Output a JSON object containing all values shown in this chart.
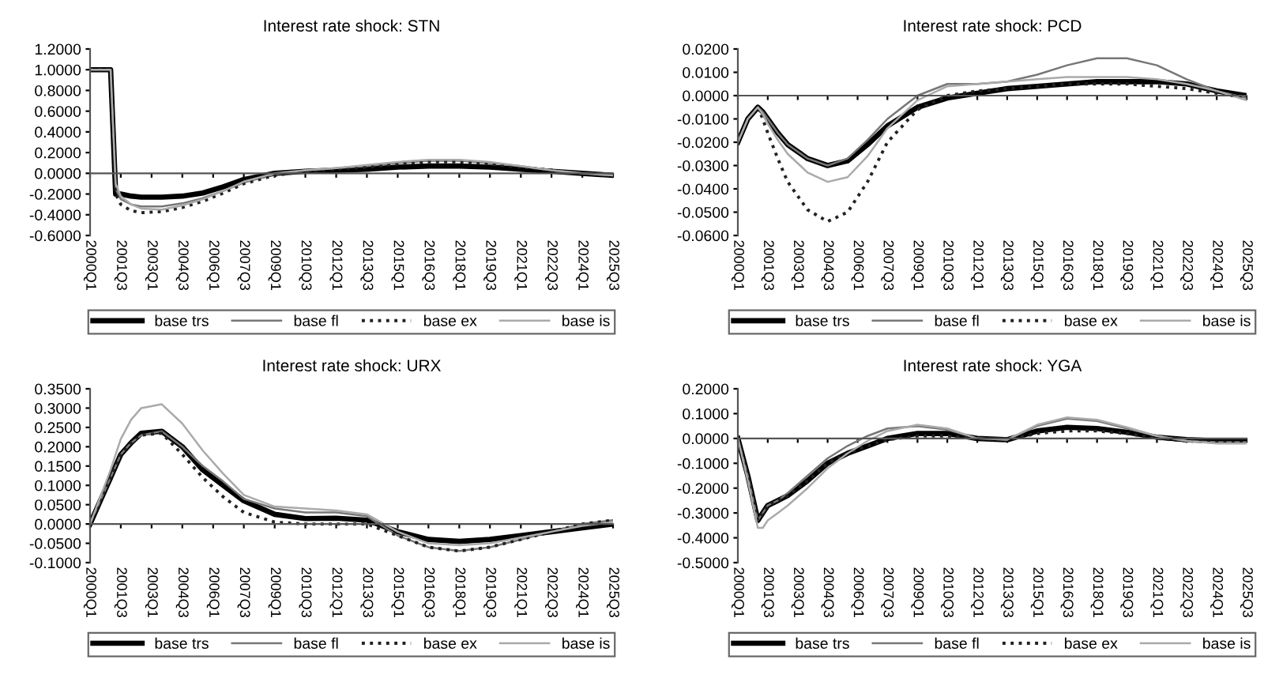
{
  "chart_data": [
    {
      "type": "line",
      "title": "Interest rate shock: STN",
      "x": [
        "2000-01",
        "2000-07",
        "2001-01",
        "2001-04",
        "2001-07",
        "2002-01",
        "2002-07",
        "2003-07",
        "2004-07",
        "2005-07",
        "2006-07",
        "2007-07",
        "2009-01",
        "2010-07",
        "2012-01",
        "2013-07",
        "2015-01",
        "2016-07",
        "2018-01",
        "2019-07",
        "2021-01",
        "2022-07",
        "2024-01",
        "2025-07"
      ],
      "series": [
        {
          "name": "base trs",
          "color": "#000000",
          "line_style": "solid",
          "values": [
            1.0,
            1.0,
            1.0,
            -0.2,
            -0.2,
            -0.22,
            -0.23,
            -0.23,
            -0.22,
            -0.19,
            -0.13,
            -0.06,
            0.0,
            0.02,
            0.03,
            0.04,
            0.06,
            0.07,
            0.07,
            0.06,
            0.04,
            0.02,
            0.0,
            -0.02
          ]
        },
        {
          "name": "base fl",
          "color": "#777777",
          "line_style": "solid",
          "values": [
            1.0,
            1.0,
            1.0,
            -0.15,
            -0.25,
            -0.3,
            -0.32,
            -0.32,
            -0.29,
            -0.24,
            -0.17,
            -0.09,
            -0.01,
            0.03,
            0.05,
            0.07,
            0.1,
            0.12,
            0.12,
            0.1,
            0.07,
            0.03,
            0.0,
            -0.02
          ]
        },
        {
          "name": "base ex",
          "color": "#222222",
          "line_style": "dotted",
          "values": [
            1.0,
            1.0,
            1.0,
            -0.2,
            -0.3,
            -0.36,
            -0.38,
            -0.37,
            -0.33,
            -0.27,
            -0.19,
            -0.1,
            -0.02,
            0.02,
            0.04,
            0.06,
            0.09,
            0.11,
            0.11,
            0.09,
            0.06,
            0.03,
            0.0,
            -0.02
          ]
        },
        {
          "name": "base is",
          "color": "#aaaaaa",
          "line_style": "solid",
          "values": [
            1.0,
            1.0,
            1.0,
            -0.1,
            -0.22,
            -0.3,
            -0.34,
            -0.35,
            -0.31,
            -0.25,
            -0.17,
            -0.08,
            0.0,
            0.03,
            0.05,
            0.08,
            0.11,
            0.13,
            0.13,
            0.11,
            0.07,
            0.03,
            0.0,
            -0.02
          ]
        }
      ],
      "xlim": [
        "2000-01",
        "2025-07"
      ],
      "xticks": [
        {
          "value": "2000-01",
          "label": "2000Q1"
        },
        {
          "value": "2001-07",
          "label": "2001Q3"
        },
        {
          "value": "2003-01",
          "label": "2003Q1"
        },
        {
          "value": "2004-07",
          "label": "2004Q3"
        },
        {
          "value": "2006-01",
          "label": "2006Q1"
        },
        {
          "value": "2007-07",
          "label": "2007Q3"
        },
        {
          "value": "2009-01",
          "label": "2009Q1"
        },
        {
          "value": "2010-07",
          "label": "2010Q3"
        },
        {
          "value": "2012-01",
          "label": "2012Q1"
        },
        {
          "value": "2013-07",
          "label": "2013Q3"
        },
        {
          "value": "2015-01",
          "label": "2015Q1"
        },
        {
          "value": "2016-07",
          "label": "2016Q3"
        },
        {
          "value": "2018-01",
          "label": "2018Q1"
        },
        {
          "value": "2019-07",
          "label": "2019Q3"
        },
        {
          "value": "2021-01",
          "label": "2021Q1"
        },
        {
          "value": "2022-07",
          "label": "2022Q3"
        },
        {
          "value": "2024-01",
          "label": "2024Q1"
        },
        {
          "value": "2025-07",
          "label": "2025Q3"
        }
      ],
      "ylim": [
        -0.6,
        1.2
      ],
      "yticks": [
        {
          "value": -0.6,
          "label": "-0.6000"
        },
        {
          "value": -0.4,
          "label": "-0.4000"
        },
        {
          "value": -0.2,
          "label": "-0.2000"
        },
        {
          "value": 0,
          "label": "0.0000"
        },
        {
          "value": 0.2,
          "label": "0.2000"
        },
        {
          "value": 0.4,
          "label": "0.4000"
        },
        {
          "value": 0.6,
          "label": "0.6000"
        },
        {
          "value": 0.8,
          "label": "0.8000"
        },
        {
          "value": 1.0,
          "label": "1.0000"
        },
        {
          "value": 1.2,
          "label": "1.2000"
        }
      ],
      "legend": "bottom"
    },
    {
      "type": "line",
      "title": "Interest rate shock: PCD",
      "x": [
        "2000-01",
        "2000-07",
        "2001-01",
        "2001-04",
        "2001-07",
        "2002-01",
        "2002-07",
        "2003-07",
        "2004-07",
        "2005-07",
        "2006-07",
        "2007-07",
        "2009-01",
        "2010-07",
        "2012-01",
        "2013-07",
        "2015-01",
        "2016-07",
        "2018-01",
        "2019-07",
        "2021-01",
        "2022-07",
        "2024-01",
        "2025-07"
      ],
      "series": [
        {
          "name": "base trs",
          "color": "#000000",
          "line_style": "solid",
          "values": [
            -0.02,
            -0.01,
            -0.005,
            -0.007,
            -0.01,
            -0.016,
            -0.021,
            -0.027,
            -0.03,
            -0.028,
            -0.021,
            -0.013,
            -0.005,
            -0.001,
            0.001,
            0.003,
            0.004,
            0.005,
            0.006,
            0.006,
            0.006,
            0.005,
            0.002,
            0.0
          ]
        },
        {
          "name": "base fl",
          "color": "#777777",
          "line_style": "solid",
          "values": [
            -0.02,
            -0.01,
            -0.005,
            -0.007,
            -0.01,
            -0.016,
            -0.021,
            -0.027,
            -0.03,
            -0.027,
            -0.019,
            -0.01,
            0.0,
            0.005,
            0.005,
            0.006,
            0.009,
            0.013,
            0.016,
            0.016,
            0.013,
            0.007,
            0.002,
            -0.001
          ]
        },
        {
          "name": "base ex",
          "color": "#222222",
          "line_style": "dotted",
          "values": [
            -0.02,
            -0.01,
            -0.005,
            -0.01,
            -0.016,
            -0.027,
            -0.037,
            -0.049,
            -0.054,
            -0.05,
            -0.037,
            -0.02,
            -0.006,
            0.0,
            0.002,
            0.003,
            0.004,
            0.005,
            0.005,
            0.005,
            0.004,
            0.003,
            0.001,
            -0.001
          ]
        },
        {
          "name": "base is",
          "color": "#aaaaaa",
          "line_style": "solid",
          "values": [
            -0.02,
            -0.01,
            -0.005,
            -0.008,
            -0.012,
            -0.019,
            -0.025,
            -0.033,
            -0.037,
            -0.035,
            -0.026,
            -0.014,
            -0.002,
            0.004,
            0.005,
            0.006,
            0.007,
            0.008,
            0.008,
            0.008,
            0.007,
            0.005,
            0.002,
            -0.002
          ]
        }
      ],
      "xlim": [
        "2000-01",
        "2025-07"
      ],
      "xticks": [
        {
          "value": "2000-01",
          "label": "2000Q1"
        },
        {
          "value": "2001-07",
          "label": "2001Q3"
        },
        {
          "value": "2003-01",
          "label": "2003Q1"
        },
        {
          "value": "2004-07",
          "label": "2004Q3"
        },
        {
          "value": "2006-01",
          "label": "2006Q1"
        },
        {
          "value": "2007-07",
          "label": "2007Q3"
        },
        {
          "value": "2009-01",
          "label": "2009Q1"
        },
        {
          "value": "2010-07",
          "label": "2010Q3"
        },
        {
          "value": "2012-01",
          "label": "2012Q1"
        },
        {
          "value": "2013-07",
          "label": "2013Q3"
        },
        {
          "value": "2015-01",
          "label": "2015Q1"
        },
        {
          "value": "2016-07",
          "label": "2016Q3"
        },
        {
          "value": "2018-01",
          "label": "2018Q1"
        },
        {
          "value": "2019-07",
          "label": "2019Q3"
        },
        {
          "value": "2021-01",
          "label": "2021Q1"
        },
        {
          "value": "2022-07",
          "label": "2022Q3"
        },
        {
          "value": "2024-01",
          "label": "2024Q1"
        },
        {
          "value": "2025-07",
          "label": "2025Q3"
        }
      ],
      "ylim": [
        -0.06,
        0.02
      ],
      "yticks": [
        {
          "value": -0.06,
          "label": "-0.0600"
        },
        {
          "value": -0.05,
          "label": "-0.0500"
        },
        {
          "value": -0.04,
          "label": "-0.0400"
        },
        {
          "value": -0.03,
          "label": "-0.0300"
        },
        {
          "value": -0.02,
          "label": "-0.0200"
        },
        {
          "value": -0.01,
          "label": "-0.0100"
        },
        {
          "value": 0,
          "label": "0.0000"
        },
        {
          "value": 0.01,
          "label": "0.0100"
        },
        {
          "value": 0.02,
          "label": "0.0200"
        }
      ],
      "legend": "bottom"
    },
    {
      "type": "line",
      "title": "Interest rate shock: URX",
      "x": [
        "2000-01",
        "2000-07",
        "2001-01",
        "2001-04",
        "2001-07",
        "2002-01",
        "2002-07",
        "2003-07",
        "2004-07",
        "2005-07",
        "2006-07",
        "2007-07",
        "2009-01",
        "2010-07",
        "2012-01",
        "2013-07",
        "2015-01",
        "2016-07",
        "2018-01",
        "2019-07",
        "2021-01",
        "2022-07",
        "2024-01",
        "2025-07"
      ],
      "series": [
        {
          "name": "base trs",
          "color": "#000000",
          "line_style": "solid",
          "values": [
            0.0,
            0.06,
            0.12,
            0.15,
            0.18,
            0.21,
            0.235,
            0.24,
            0.2,
            0.14,
            0.1,
            0.06,
            0.025,
            0.014,
            0.015,
            0.01,
            -0.02,
            -0.04,
            -0.045,
            -0.04,
            -0.03,
            -0.02,
            -0.01,
            0.0
          ]
        },
        {
          "name": "base fl",
          "color": "#777777",
          "line_style": "solid",
          "values": [
            0.0,
            0.06,
            0.12,
            0.15,
            0.18,
            0.21,
            0.23,
            0.24,
            0.2,
            0.15,
            0.11,
            0.065,
            0.04,
            0.03,
            0.03,
            0.02,
            -0.03,
            -0.06,
            -0.07,
            -0.06,
            -0.04,
            -0.02,
            0.0,
            0.01
          ]
        },
        {
          "name": "base ex",
          "color": "#222222",
          "line_style": "dotted",
          "values": [
            0.0,
            0.06,
            0.12,
            0.15,
            0.18,
            0.21,
            0.23,
            0.235,
            0.18,
            0.12,
            0.07,
            0.03,
            0.005,
            0.0,
            0.0,
            0.0,
            -0.03,
            -0.06,
            -0.07,
            -0.06,
            -0.04,
            -0.02,
            0.0,
            0.01
          ]
        },
        {
          "name": "base is",
          "color": "#aaaaaa",
          "line_style": "solid",
          "values": [
            0.0,
            0.07,
            0.14,
            0.18,
            0.22,
            0.27,
            0.3,
            0.31,
            0.26,
            0.19,
            0.13,
            0.075,
            0.045,
            0.04,
            0.035,
            0.025,
            -0.02,
            -0.05,
            -0.055,
            -0.05,
            -0.035,
            -0.02,
            -0.005,
            0.005
          ]
        }
      ],
      "xlim": [
        "2000-01",
        "2025-07"
      ],
      "xticks": [
        {
          "value": "2000-01",
          "label": "2000Q1"
        },
        {
          "value": "2001-07",
          "label": "2001Q3"
        },
        {
          "value": "2003-01",
          "label": "2003Q1"
        },
        {
          "value": "2004-07",
          "label": "2004Q3"
        },
        {
          "value": "2006-01",
          "label": "2006Q1"
        },
        {
          "value": "2007-07",
          "label": "2007Q3"
        },
        {
          "value": "2009-01",
          "label": "2009Q1"
        },
        {
          "value": "2010-07",
          "label": "2010Q3"
        },
        {
          "value": "2012-01",
          "label": "2012Q1"
        },
        {
          "value": "2013-07",
          "label": "2013Q3"
        },
        {
          "value": "2015-01",
          "label": "2015Q1"
        },
        {
          "value": "2016-07",
          "label": "2016Q3"
        },
        {
          "value": "2018-01",
          "label": "2018Q1"
        },
        {
          "value": "2019-07",
          "label": "2019Q3"
        },
        {
          "value": "2021-01",
          "label": "2021Q1"
        },
        {
          "value": "2022-07",
          "label": "2022Q3"
        },
        {
          "value": "2024-01",
          "label": "2024Q1"
        },
        {
          "value": "2025-07",
          "label": "2025Q3"
        }
      ],
      "ylim": [
        -0.1,
        0.35
      ],
      "yticks": [
        {
          "value": -0.1,
          "label": "-0.1000"
        },
        {
          "value": -0.05,
          "label": "-0.0500"
        },
        {
          "value": 0,
          "label": "0.0000"
        },
        {
          "value": 0.05,
          "label": "0.0500"
        },
        {
          "value": 0.1,
          "label": "0.1000"
        },
        {
          "value": 0.15,
          "label": "0.1500"
        },
        {
          "value": 0.2,
          "label": "0.2000"
        },
        {
          "value": 0.25,
          "label": "0.2500"
        },
        {
          "value": 0.3,
          "label": "0.3000"
        },
        {
          "value": 0.35,
          "label": "0.3500"
        }
      ],
      "legend": "bottom"
    },
    {
      "type": "line",
      "title": "Interest rate shock: YGA",
      "x": [
        "2000-01",
        "2000-07",
        "2001-01",
        "2001-04",
        "2001-07",
        "2002-01",
        "2002-07",
        "2003-07",
        "2004-07",
        "2005-07",
        "2006-07",
        "2007-07",
        "2009-01",
        "2010-07",
        "2012-01",
        "2013-07",
        "2015-01",
        "2016-07",
        "2018-01",
        "2019-07",
        "2021-01",
        "2022-07",
        "2024-01",
        "2025-07"
      ],
      "series": [
        {
          "name": "base trs",
          "color": "#000000",
          "line_style": "solid",
          "values": [
            0.0,
            -0.15,
            -0.33,
            -0.3,
            -0.27,
            -0.25,
            -0.23,
            -0.17,
            -0.1,
            -0.06,
            -0.03,
            0.0,
            0.02,
            0.02,
            0.0,
            -0.005,
            0.03,
            0.045,
            0.04,
            0.025,
            0.005,
            -0.005,
            -0.01,
            -0.01
          ]
        },
        {
          "name": "base fl",
          "color": "#777777",
          "line_style": "solid",
          "values": [
            0.0,
            -0.15,
            -0.33,
            -0.3,
            -0.27,
            -0.25,
            -0.22,
            -0.15,
            -0.08,
            -0.03,
            0.01,
            0.04,
            0.05,
            0.035,
            0.0,
            -0.005,
            0.05,
            0.08,
            0.07,
            0.04,
            0.01,
            -0.01,
            -0.015,
            -0.015
          ]
        },
        {
          "name": "base ex",
          "color": "#222222",
          "line_style": "dotted",
          "values": [
            0.0,
            -0.15,
            -0.33,
            -0.3,
            -0.27,
            -0.25,
            -0.23,
            -0.17,
            -0.1,
            -0.06,
            -0.03,
            -0.005,
            0.01,
            0.01,
            0.0,
            -0.005,
            0.02,
            0.03,
            0.03,
            0.02,
            0.0,
            -0.01,
            -0.015,
            -0.015
          ]
        },
        {
          "name": "base is",
          "color": "#aaaaaa",
          "line_style": "solid",
          "values": [
            0.0,
            -0.17,
            -0.36,
            -0.36,
            -0.33,
            -0.3,
            -0.27,
            -0.2,
            -0.12,
            -0.06,
            -0.01,
            0.03,
            0.055,
            0.04,
            0.0,
            -0.005,
            0.055,
            0.085,
            0.075,
            0.045,
            0.01,
            -0.01,
            -0.02,
            -0.02
          ]
        }
      ],
      "xlim": [
        "2000-01",
        "2025-07"
      ],
      "xticks": [
        {
          "value": "2000-01",
          "label": "2000Q1"
        },
        {
          "value": "2001-07",
          "label": "2001Q3"
        },
        {
          "value": "2003-01",
          "label": "2003Q1"
        },
        {
          "value": "2004-07",
          "label": "2004Q3"
        },
        {
          "value": "2006-01",
          "label": "2006Q1"
        },
        {
          "value": "2007-07",
          "label": "2007Q3"
        },
        {
          "value": "2009-01",
          "label": "2009Q1"
        },
        {
          "value": "2010-07",
          "label": "2010Q3"
        },
        {
          "value": "2012-01",
          "label": "2012Q1"
        },
        {
          "value": "2013-07",
          "label": "2013Q3"
        },
        {
          "value": "2015-01",
          "label": "2015Q1"
        },
        {
          "value": "2016-07",
          "label": "2016Q3"
        },
        {
          "value": "2018-01",
          "label": "2018Q1"
        },
        {
          "value": "2019-07",
          "label": "2019Q3"
        },
        {
          "value": "2021-01",
          "label": "2021Q1"
        },
        {
          "value": "2022-07",
          "label": "2022Q3"
        },
        {
          "value": "2024-01",
          "label": "2024Q1"
        },
        {
          "value": "2025-07",
          "label": "2025Q3"
        }
      ],
      "ylim": [
        -0.5,
        0.2
      ],
      "yticks": [
        {
          "value": -0.5,
          "label": "-0.5000"
        },
        {
          "value": -0.4,
          "label": "-0.4000"
        },
        {
          "value": -0.3,
          "label": "-0.3000"
        },
        {
          "value": -0.2,
          "label": "-0.2000"
        },
        {
          "value": -0.1,
          "label": "-0.1000"
        },
        {
          "value": 0,
          "label": "0.0000"
        },
        {
          "value": 0.1,
          "label": "0.1000"
        },
        {
          "value": 0.2,
          "label": "0.2000"
        }
      ],
      "legend": "bottom"
    }
  ]
}
